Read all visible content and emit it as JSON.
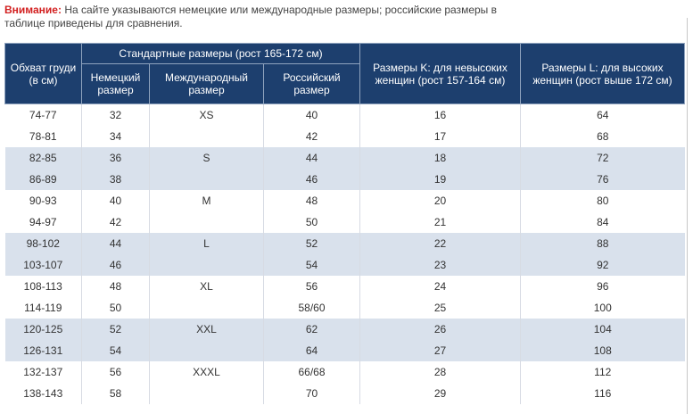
{
  "note": {
    "label": "Внимание:",
    "text": " На сайте указываются немецкие или международные размеры; российские размеры в таблице приведены для сравнения."
  },
  "header": {
    "chest": "Обхват груди (в см)",
    "standard_group": "Стандартные размеры (рост 165-172 см)",
    "german": "Немецкий размер",
    "international": "Международный размер",
    "russian": "Российский размер",
    "k_sizes": "Размеры K: для невысоких женщин (рост 157-164 см)",
    "l_sizes": "Размеры L: для высоких женщин (рост выше 172 см)"
  },
  "rows": [
    {
      "chest": "74-77",
      "german": "32",
      "intl": "XS",
      "russian": "40",
      "k": "16",
      "l": "64"
    },
    {
      "chest": "78-81",
      "german": "34",
      "intl": "",
      "russian": "42",
      "k": "17",
      "l": "68"
    },
    {
      "chest": "82-85",
      "german": "36",
      "intl": "S",
      "russian": "44",
      "k": "18",
      "l": "72"
    },
    {
      "chest": "86-89",
      "german": "38",
      "intl": "",
      "russian": "46",
      "k": "19",
      "l": "76"
    },
    {
      "chest": "90-93",
      "german": "40",
      "intl": "M",
      "russian": "48",
      "k": "20",
      "l": "80"
    },
    {
      "chest": "94-97",
      "german": "42",
      "intl": "",
      "russian": "50",
      "k": "21",
      "l": "84"
    },
    {
      "chest": "98-102",
      "german": "44",
      "intl": "L",
      "russian": "52",
      "k": "22",
      "l": "88"
    },
    {
      "chest": "103-107",
      "german": "46",
      "intl": "",
      "russian": "54",
      "k": "23",
      "l": "92"
    },
    {
      "chest": "108-113",
      "german": "48",
      "intl": "XL",
      "russian": "56",
      "k": "24",
      "l": "96"
    },
    {
      "chest": "114-119",
      "german": "50",
      "intl": "",
      "russian": "58/60",
      "k": "25",
      "l": "100"
    },
    {
      "chest": "120-125",
      "german": "52",
      "intl": "XXL",
      "russian": "62",
      "k": "26",
      "l": "104"
    },
    {
      "chest": "126-131",
      "german": "54",
      "intl": "",
      "russian": "64",
      "k": "27",
      "l": "108"
    },
    {
      "chest": "132-137",
      "german": "56",
      "intl": "XXXL",
      "russian": "66/68",
      "k": "28",
      "l": "112"
    },
    {
      "chest": "138-143",
      "german": "58",
      "intl": "",
      "russian": "70",
      "k": "29",
      "l": "116"
    }
  ],
  "colors": {
    "header_bg": "#1d3f6e",
    "shaded_row": "#d9e1ec",
    "note_label": "#d21f1f"
  }
}
